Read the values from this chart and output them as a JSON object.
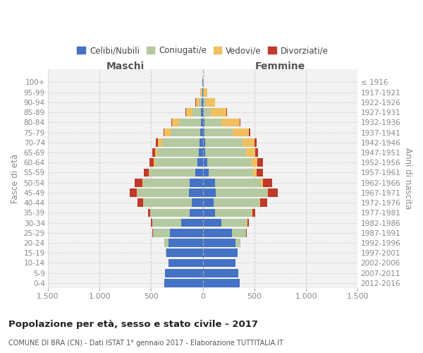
{
  "age_groups": [
    "0-4",
    "5-9",
    "10-14",
    "15-19",
    "20-24",
    "25-29",
    "30-34",
    "35-39",
    "40-44",
    "45-49",
    "50-54",
    "55-59",
    "60-64",
    "65-69",
    "70-74",
    "75-79",
    "80-84",
    "85-89",
    "90-94",
    "95-99",
    "100+"
  ],
  "birth_years": [
    "2012-2016",
    "2007-2011",
    "2002-2006",
    "1997-2001",
    "1992-1996",
    "1987-1991",
    "1982-1986",
    "1977-1981",
    "1972-1976",
    "1967-1971",
    "1962-1966",
    "1957-1961",
    "1952-1956",
    "1947-1951",
    "1942-1946",
    "1937-1941",
    "1932-1936",
    "1927-1931",
    "1922-1926",
    "1917-1921",
    "≤ 1916"
  ],
  "colors": {
    "celibi": "#4472c4",
    "coniugati": "#b5c9a0",
    "vedovi": "#f0c060",
    "divorziati": "#c0392b"
  },
  "maschi": {
    "celibi": [
      375,
      365,
      335,
      355,
      335,
      320,
      210,
      130,
      110,
      135,
      125,
      75,
      55,
      40,
      35,
      25,
      20,
      15,
      10,
      5,
      2
    ],
    "coniugati": [
      0,
      0,
      0,
      5,
      40,
      165,
      280,
      380,
      465,
      500,
      455,
      440,
      410,
      400,
      360,
      290,
      210,
      85,
      30,
      8,
      0
    ],
    "vedovi": [
      0,
      0,
      0,
      0,
      0,
      0,
      1,
      1,
      2,
      3,
      5,
      7,
      12,
      22,
      38,
      55,
      70,
      65,
      28,
      12,
      0
    ],
    "divorziati": [
      0,
      0,
      0,
      0,
      0,
      5,
      14,
      22,
      55,
      68,
      75,
      50,
      42,
      28,
      20,
      12,
      8,
      5,
      2,
      0,
      0
    ]
  },
  "femmine": {
    "celibi": [
      360,
      345,
      315,
      335,
      315,
      285,
      178,
      115,
      105,
      125,
      115,
      55,
      45,
      25,
      22,
      15,
      15,
      10,
      10,
      4,
      2
    ],
    "coniugati": [
      0,
      0,
      0,
      5,
      50,
      135,
      250,
      360,
      445,
      495,
      445,
      435,
      430,
      395,
      365,
      275,
      165,
      65,
      22,
      5,
      0
    ],
    "vedovi": [
      0,
      0,
      0,
      0,
      0,
      0,
      1,
      2,
      6,
      13,
      22,
      32,
      55,
      85,
      115,
      155,
      175,
      155,
      85,
      32,
      2
    ],
    "divorziati": [
      0,
      0,
      2,
      0,
      2,
      5,
      15,
      28,
      65,
      92,
      92,
      62,
      52,
      28,
      20,
      14,
      10,
      5,
      2,
      0,
      0
    ]
  },
  "title": "Popolazione per età, sesso e stato civile - 2017",
  "subtitle": "COMUNE DI BRA (CN) - Dati ISTAT 1° gennaio 2017 - Elaborazione TUTTITALIA.IT",
  "ylabel_left": "Fasce di età",
  "ylabel_right": "Anni di nascita",
  "xlabel_left": "Maschi",
  "xlabel_right": "Femmine",
  "xlim": 1500,
  "xtick_positions": [
    -1500,
    -1000,
    -500,
    0,
    500,
    1000,
    1500
  ],
  "xtick_labels": [
    "1.500",
    "1.000",
    "500",
    "0",
    "500",
    "1.000",
    "1.500"
  ],
  "legend_labels": [
    "Celibi/Nubili",
    "Coniugati/e",
    "Vedovi/e",
    "Divorziati/e"
  ],
  "bg_color": "#f2f2f2"
}
